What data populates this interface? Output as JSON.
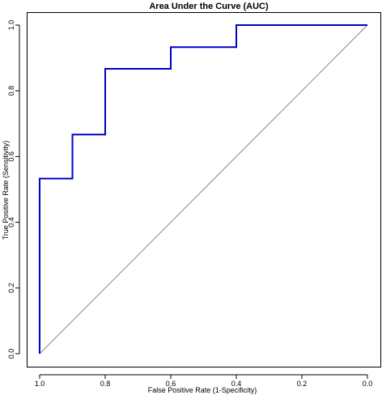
{
  "chart_data": {
    "type": "line",
    "title": "Area Under the Curve (AUC)",
    "xlabel": "False Positive Rate (1-Specificity)",
    "ylabel": "True Positive Rate (Sensitivity)",
    "xlim": [
      1.0,
      0.0
    ],
    "ylim": [
      0.0,
      1.0
    ],
    "x_reversed": true,
    "x_ticks": [
      "1.0",
      "0.8",
      "0.6",
      "0.4",
      "0.2",
      "0.0"
    ],
    "x_tick_values": [
      1.0,
      0.8,
      0.6,
      0.4,
      0.2,
      0.0
    ],
    "y_ticks": [
      "0.0",
      "0.2",
      "0.4",
      "0.6",
      "0.8",
      "1.0"
    ],
    "y_tick_values": [
      0.0,
      0.2,
      0.4,
      0.6,
      0.8,
      1.0
    ],
    "grid": false,
    "series": [
      {
        "color": "#0000cc",
        "x": [
          1.0,
          1.0,
          0.9,
          0.9,
          0.8,
          0.8,
          0.6,
          0.6,
          0.4,
          0.4,
          0.0
        ],
        "y": [
          0.0,
          0.533,
          0.533,
          0.667,
          0.667,
          0.867,
          0.867,
          0.933,
          0.933,
          1.0,
          1.0
        ]
      }
    ],
    "reference_line": {
      "color": "#888888",
      "x": [
        1.0,
        0.0
      ],
      "y": [
        0.0,
        1.0
      ]
    }
  }
}
